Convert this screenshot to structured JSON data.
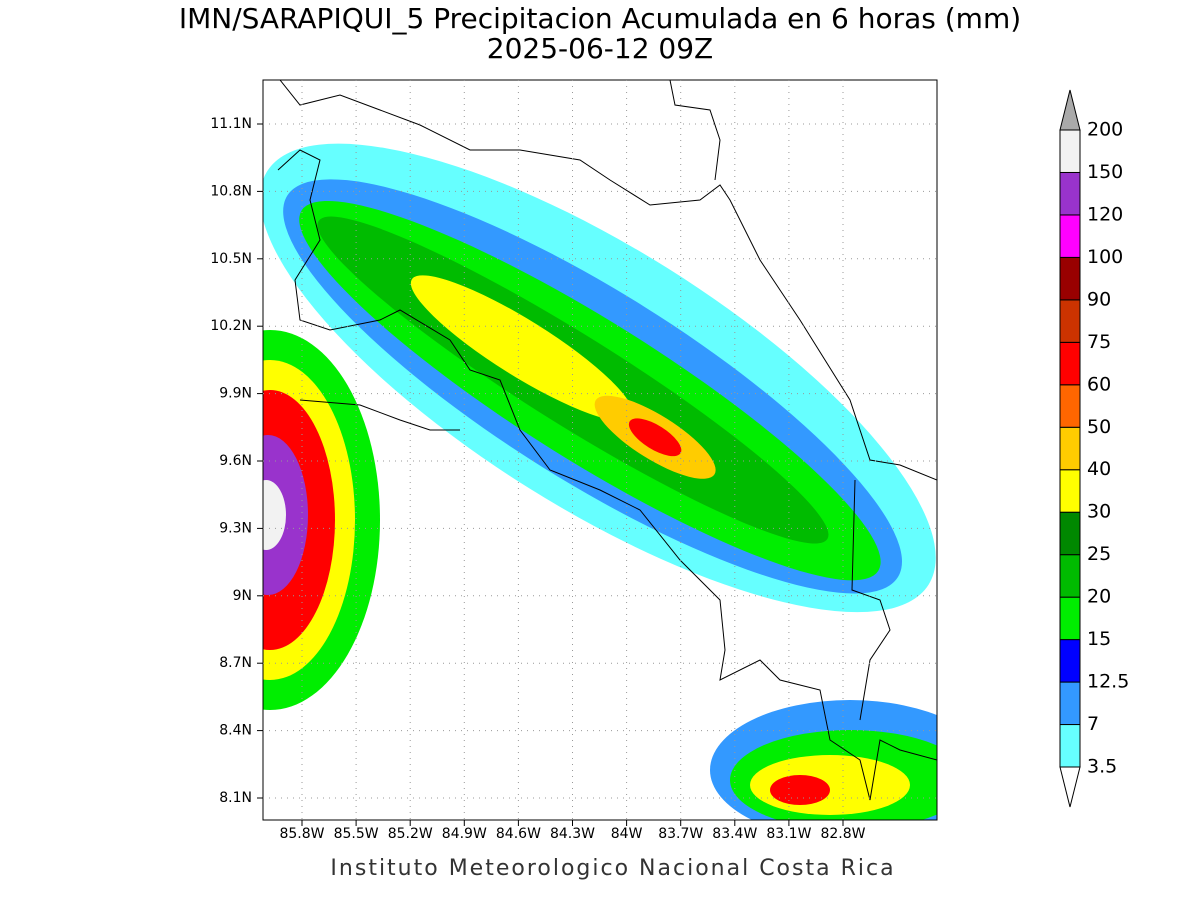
{
  "title": [
    "IMN/SARAPIQUI_5 Precipitacion Acumulada en 6 horas (mm)",
    "2025-06-12 09Z"
  ],
  "map": {
    "lat_ticks": [
      "11.1N",
      "10.8N",
      "10.5N",
      "10.2N",
      "9.9N",
      "9.6N",
      "9.3N",
      "9N",
      "8.7N",
      "8.4N",
      "8.1N"
    ],
    "lon_ticks": [
      "85.8W",
      "85.5W",
      "85.2W",
      "84.9W",
      "84.6W",
      "84.3W",
      "84W",
      "83.7W",
      "83.4W",
      "83.1W",
      "82.8W"
    ]
  },
  "colorbar": {
    "levels": [
      3.5,
      7,
      12.5,
      15,
      20,
      25,
      30,
      40,
      50,
      60,
      75,
      90,
      100,
      120,
      150,
      200
    ],
    "colors": [
      "#66ffff",
      "#3399ff",
      "#0000ff",
      "#00ee00",
      "#00bb00",
      "#008800",
      "#ffff00",
      "#ffcc00",
      "#ff6600",
      "#ff0000",
      "#cc3300",
      "#990000",
      "#ff00ff",
      "#9933cc",
      "#f2f2f2"
    ],
    "over_color": "#aaaaaa",
    "under_color": "#ffffff"
  },
  "footer": "Instituto Meteorologico Nacional Costa Rica"
}
